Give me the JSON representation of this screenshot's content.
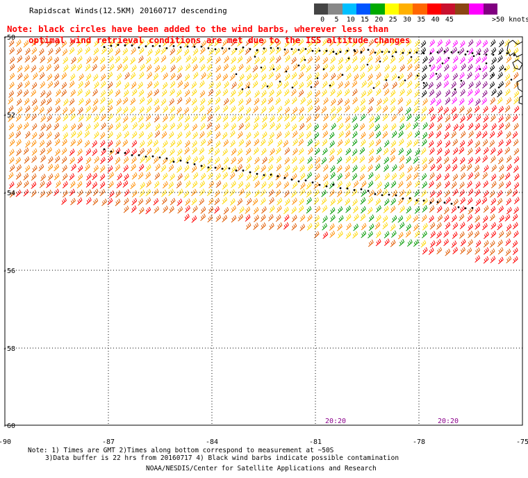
{
  "title": "Rapidscat Winds(12.5KM) 20160717 descending",
  "note_red": {
    "line1": "Note: black circles have been added to the wind barbs, wherever less than",
    "line2": "optimal wind retrieval conditions are met due to the ISS altitude changes"
  },
  "legend": {
    "unit": ">50 knots",
    "labels": [
      "0",
      "5",
      "10",
      "15",
      "20",
      "25",
      "30",
      "35",
      "40",
      "45"
    ],
    "colors": [
      "#444444",
      "#888888",
      "#00bfff",
      "#0055ff",
      "#00aa00",
      "#ffff00",
      "#ffb000",
      "#ff6600",
      "#ff0000",
      "#c8102e",
      "#8b4513",
      "#ff00ff",
      "#800080"
    ]
  },
  "axes": {
    "lon_labels": [
      "-90",
      "-87",
      "-84",
      "-81",
      "-78",
      "-75"
    ],
    "lat_labels": [
      "-50",
      "-52",
      "-54",
      "-56",
      "-58",
      "-60"
    ]
  },
  "time_labels": [
    "20:20",
    "20:20"
  ],
  "footer": {
    "line1": "Note: 1) Times are GMT 2)Times along bottom correspond to measurement at ~50S",
    "line2": "3)Data buffer is 22 hrs from 20160717 4) Black wind barbs indicate possible contamination",
    "credit": "NOAA/NESDIS/Center for Satellite Applications and Research"
  },
  "colors": {
    "yellow": "#ffd700",
    "orange": "#ff8c00",
    "dark_orange": "#e05a00",
    "red": "#ff0000",
    "green": "#009900",
    "magenta": "#ff00ff",
    "purple": "#800080",
    "black": "#000000"
  }
}
